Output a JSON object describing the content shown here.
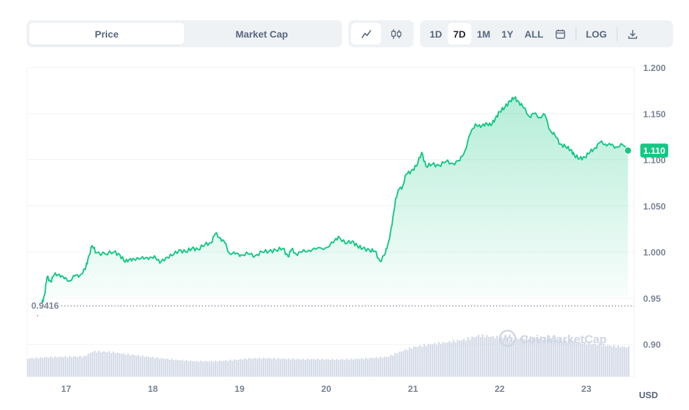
{
  "toolbar": {
    "type_tabs": [
      {
        "label": "Price",
        "active": true
      },
      {
        "label": "Market Cap",
        "active": false
      }
    ],
    "chart_kinds": [
      {
        "icon": "line-chart-icon",
        "active": true
      },
      {
        "icon": "candlestick-icon",
        "active": false
      }
    ],
    "ranges": [
      {
        "label": "1D",
        "active": false
      },
      {
        "label": "7D",
        "active": true
      },
      {
        "label": "1M",
        "active": false
      },
      {
        "label": "1Y",
        "active": false
      },
      {
        "label": "ALL",
        "active": false
      }
    ],
    "calendar_icon": "calendar-icon",
    "log_label": "LOG",
    "download_icon": "download-icon"
  },
  "watermark": "CoinMarketCap",
  "colors": {
    "line": "#16c784",
    "area_top": "#16c784",
    "volume": "#cfd6e4",
    "grid": "#eff2f5",
    "badge": "#16c784"
  },
  "chart_data": {
    "type": "area",
    "unit": "USD",
    "current_price": "1.110",
    "min_label": "0.9416",
    "x_ticks": [
      "17",
      "18",
      "19",
      "20",
      "21",
      "22",
      "23"
    ],
    "y_ticks": [
      "1.200",
      "1.150",
      "1.100",
      "1.050",
      "1.000",
      "0.95",
      "0.90"
    ],
    "ylim": [
      0.865,
      1.2
    ],
    "xlim": [
      16.55,
      23.55
    ],
    "price_series": [
      [
        16.72,
        0.944
      ],
      [
        16.75,
        0.953
      ],
      [
        16.78,
        0.973
      ],
      [
        16.82,
        0.968
      ],
      [
        16.86,
        0.975
      ],
      [
        16.92,
        0.976
      ],
      [
        16.98,
        0.971
      ],
      [
        17.04,
        0.969
      ],
      [
        17.1,
        0.974
      ],
      [
        17.16,
        0.975
      ],
      [
        17.22,
        0.981
      ],
      [
        17.25,
        0.992
      ],
      [
        17.3,
        1.007
      ],
      [
        17.35,
        0.999
      ],
      [
        17.45,
        0.998
      ],
      [
        17.55,
        1.0
      ],
      [
        17.62,
        0.997
      ],
      [
        17.68,
        0.989
      ],
      [
        17.74,
        0.993
      ],
      [
        17.8,
        0.991
      ],
      [
        17.88,
        0.995
      ],
      [
        17.95,
        0.992
      ],
      [
        18.02,
        0.996
      ],
      [
        18.08,
        0.988
      ],
      [
        18.15,
        0.994
      ],
      [
        18.22,
        0.996
      ],
      [
        18.3,
        1.002
      ],
      [
        18.38,
        1.0
      ],
      [
        18.45,
        1.004
      ],
      [
        18.52,
        1.003
      ],
      [
        18.6,
        1.008
      ],
      [
        18.67,
        1.01
      ],
      [
        18.72,
        1.02
      ],
      [
        18.78,
        1.015
      ],
      [
        18.83,
        1.01
      ],
      [
        18.88,
        0.999
      ],
      [
        18.95,
        0.998
      ],
      [
        19.02,
        0.997
      ],
      [
        19.1,
        0.998
      ],
      [
        19.18,
        0.996
      ],
      [
        19.26,
        1.0
      ],
      [
        19.34,
        1.001
      ],
      [
        19.42,
        1.002
      ],
      [
        19.5,
        1.004
      ],
      [
        19.56,
        0.995
      ],
      [
        19.6,
        1.003
      ],
      [
        19.65,
        0.998
      ],
      [
        19.72,
        1.0
      ],
      [
        19.8,
        1.002
      ],
      [
        19.88,
        1.003
      ],
      [
        20.0,
        1.005
      ],
      [
        20.08,
        1.01
      ],
      [
        20.14,
        1.017
      ],
      [
        20.22,
        1.009
      ],
      [
        20.3,
        1.012
      ],
      [
        20.36,
        1.006
      ],
      [
        20.42,
        1.004
      ],
      [
        20.5,
        1.002
      ],
      [
        20.56,
        1.001
      ],
      [
        20.62,
        0.99
      ],
      [
        20.68,
        0.998
      ],
      [
        20.72,
        1.012
      ],
      [
        20.76,
        1.03
      ],
      [
        20.8,
        1.058
      ],
      [
        20.84,
        1.068
      ],
      [
        20.88,
        1.071
      ],
      [
        20.92,
        1.084
      ],
      [
        20.98,
        1.088
      ],
      [
        21.04,
        1.093
      ],
      [
        21.1,
        1.108
      ],
      [
        21.15,
        1.093
      ],
      [
        21.22,
        1.095
      ],
      [
        21.3,
        1.094
      ],
      [
        21.38,
        1.098
      ],
      [
        21.46,
        1.096
      ],
      [
        21.54,
        1.099
      ],
      [
        21.6,
        1.11
      ],
      [
        21.66,
        1.128
      ],
      [
        21.72,
        1.139
      ],
      [
        21.78,
        1.135
      ],
      [
        21.84,
        1.14
      ],
      [
        21.9,
        1.137
      ],
      [
        21.95,
        1.145
      ],
      [
        22.0,
        1.152
      ],
      [
        22.06,
        1.157
      ],
      [
        22.12,
        1.164
      ],
      [
        22.17,
        1.167
      ],
      [
        22.22,
        1.163
      ],
      [
        22.28,
        1.156
      ],
      [
        22.34,
        1.147
      ],
      [
        22.4,
        1.15
      ],
      [
        22.46,
        1.146
      ],
      [
        22.52,
        1.149
      ],
      [
        22.58,
        1.132
      ],
      [
        22.64,
        1.126
      ],
      [
        22.7,
        1.117
      ],
      [
        22.76,
        1.114
      ],
      [
        22.82,
        1.111
      ],
      [
        22.86,
        1.105
      ],
      [
        22.92,
        1.101
      ],
      [
        22.98,
        1.103
      ],
      [
        23.04,
        1.108
      ],
      [
        23.1,
        1.113
      ],
      [
        23.16,
        1.119
      ],
      [
        23.22,
        1.117
      ],
      [
        23.28,
        1.116
      ],
      [
        23.34,
        1.114
      ],
      [
        23.42,
        1.116
      ],
      [
        23.48,
        1.11
      ]
    ],
    "volume_profile": [
      [
        16.55,
        0.52
      ],
      [
        16.8,
        0.56
      ],
      [
        17.0,
        0.57
      ],
      [
        17.2,
        0.58
      ],
      [
        17.3,
        0.72
      ],
      [
        17.5,
        0.71
      ],
      [
        17.7,
        0.64
      ],
      [
        17.9,
        0.58
      ],
      [
        18.1,
        0.52
      ],
      [
        18.3,
        0.47
      ],
      [
        18.5,
        0.44
      ],
      [
        18.7,
        0.44
      ],
      [
        18.9,
        0.47
      ],
      [
        19.1,
        0.52
      ],
      [
        19.3,
        0.53
      ],
      [
        19.5,
        0.51
      ],
      [
        19.7,
        0.5
      ],
      [
        19.9,
        0.5
      ],
      [
        20.1,
        0.49
      ],
      [
        20.3,
        0.5
      ],
      [
        20.5,
        0.53
      ],
      [
        20.7,
        0.57
      ],
      [
        20.85,
        0.72
      ],
      [
        21.0,
        0.85
      ],
      [
        21.2,
        0.93
      ],
      [
        21.4,
        0.99
      ],
      [
        21.6,
        1.07
      ],
      [
        21.75,
        1.18
      ],
      [
        21.9,
        1.15
      ],
      [
        22.1,
        1.08
      ],
      [
        22.3,
        1.12
      ],
      [
        22.5,
        1.11
      ],
      [
        22.7,
        1.05
      ],
      [
        22.9,
        0.98
      ],
      [
        23.1,
        0.93
      ],
      [
        23.3,
        0.88
      ],
      [
        23.48,
        0.84
      ]
    ]
  }
}
